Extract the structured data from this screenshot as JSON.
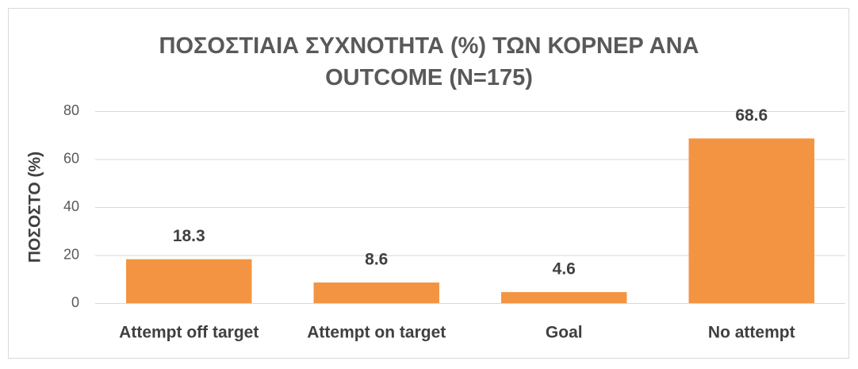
{
  "chart_data": {
    "type": "bar",
    "title": "ΠΟΣΟΣΤΙΑΙΑ ΣΥΧΝΟΤΗΤΑ (%) ΤΩΝ ΚΟΡΝΕΡ ΑΝΑ OUTCOME (N=175)",
    "y_label": "ΠΟΣΟΣΤΟ (%)",
    "categories": [
      "Attempt off target",
      "Attempt on target",
      "Goal",
      "No attempt"
    ],
    "values": [
      18.3,
      8.6,
      4.6,
      68.6
    ],
    "color": "#f39443",
    "ylim": [
      0,
      80
    ],
    "yticks": [
      0,
      20,
      40,
      60,
      80
    ],
    "grid": true
  }
}
